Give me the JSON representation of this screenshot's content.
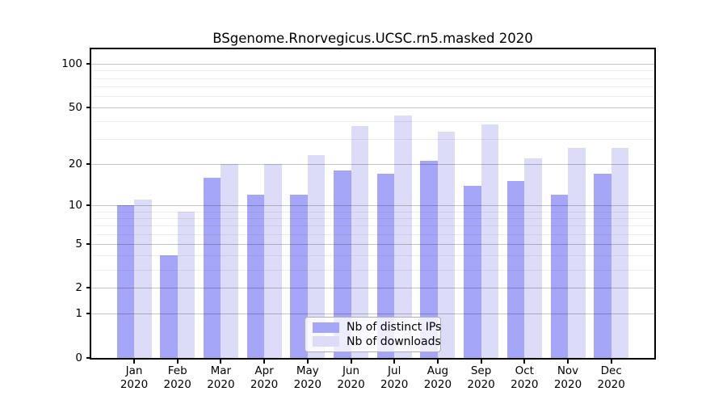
{
  "title": "BSgenome.Rnorvegicus.UCSC.rn5.masked 2020",
  "chart_data": {
    "type": "bar",
    "title": "BSgenome.Rnorvegicus.UCSC.rn5.masked 2020",
    "categories": [
      "Jan",
      "Feb",
      "Mar",
      "Apr",
      "May",
      "Jun",
      "Jul",
      "Aug",
      "Sep",
      "Oct",
      "Nov",
      "Dec"
    ],
    "category_year": "2020",
    "series": [
      {
        "name": "Nb of distinct IPs",
        "color": "#a6a6f8",
        "values": [
          10,
          4,
          16,
          12,
          12,
          18,
          17,
          21,
          14,
          15,
          12,
          17
        ]
      },
      {
        "name": "Nb of downloads",
        "color": "#dcdcf8",
        "values": [
          11,
          9,
          20,
          20,
          23,
          37,
          44,
          34,
          38,
          22,
          26,
          26
        ]
      }
    ],
    "y_scale": "log10(1+v)",
    "y_major_ticks": [
      0,
      1,
      2,
      5,
      10,
      20,
      50,
      100
    ],
    "y_minor_ticks": [
      3,
      4,
      6,
      7,
      8,
      9,
      30,
      40,
      60,
      70,
      80,
      90
    ],
    "ylim": [
      0,
      126
    ],
    "grid": true,
    "legend_position": "lower center",
    "colors": {
      "bar_distinct_ips": "#a6a6f8",
      "bar_downloads": "#dcdcf8",
      "grid_major": "#c6c6c6",
      "grid_minor": "#ededed",
      "spine": "#000000",
      "background": "#ffffff"
    }
  }
}
